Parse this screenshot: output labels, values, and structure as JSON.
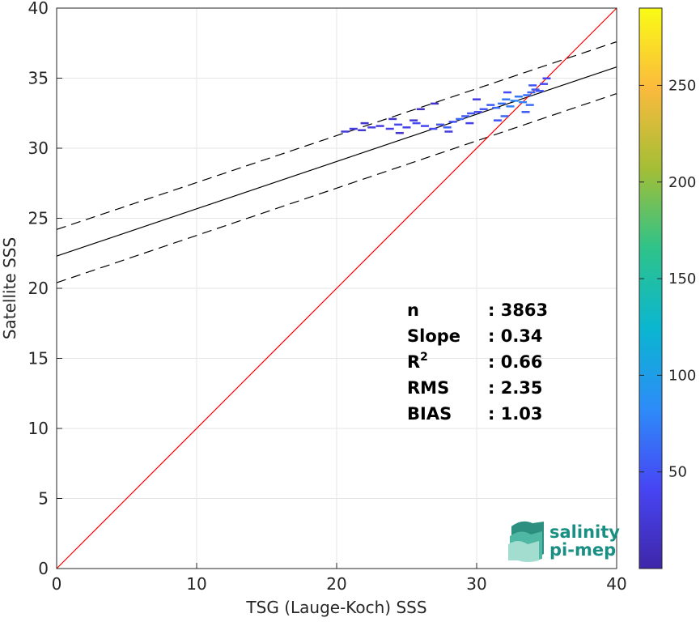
{
  "chart_data": {
    "type": "scatter",
    "xlabel": "TSG (Lauge-Koch) SSS",
    "ylabel": "Satellite SSS",
    "xlim": [
      0,
      40
    ],
    "ylim": [
      0,
      40
    ],
    "xticks": [
      "0",
      "10",
      "20",
      "30",
      "40"
    ],
    "yticks": [
      "0",
      "5",
      "10",
      "15",
      "20",
      "25",
      "30",
      "35",
      "40"
    ],
    "grid": true,
    "identity_line": {
      "from": [
        0,
        0
      ],
      "to": [
        40,
        40
      ],
      "color": "#ff0000"
    },
    "fit_line": {
      "from": [
        0,
        22.3
      ],
      "to": [
        40,
        35.8
      ],
      "color": "#000000"
    },
    "fit_band_upper": {
      "from": [
        0,
        24.2
      ],
      "to": [
        40,
        37.6
      ]
    },
    "fit_band_lower": {
      "from": [
        0,
        20.4
      ],
      "to": [
        40,
        33.9
      ]
    },
    "density_points": [
      [
        20.6,
        31.2,
        25
      ],
      [
        21.2,
        31.4,
        30
      ],
      [
        21.8,
        31.3,
        25
      ],
      [
        22.5,
        31.5,
        35
      ],
      [
        23.1,
        31.6,
        30
      ],
      [
        23.8,
        31.4,
        35
      ],
      [
        24.4,
        31.7,
        40
      ],
      [
        25.0,
        31.5,
        35
      ],
      [
        25.7,
        31.8,
        45
      ],
      [
        26.3,
        31.6,
        40
      ],
      [
        26.9,
        31.4,
        45
      ],
      [
        27.4,
        31.7,
        50
      ],
      [
        27.9,
        31.5,
        55
      ],
      [
        28.3,
        31.9,
        50
      ],
      [
        28.8,
        32.1,
        60
      ],
      [
        29.2,
        32.3,
        55
      ],
      [
        29.6,
        32.5,
        50
      ],
      [
        30.1,
        32.6,
        45
      ],
      [
        30.5,
        32.8,
        50
      ],
      [
        31.0,
        33.1,
        55
      ],
      [
        31.4,
        32.9,
        60
      ],
      [
        31.8,
        33.2,
        65
      ],
      [
        32.1,
        33.5,
        70
      ],
      [
        32.4,
        33.0,
        75
      ],
      [
        32.7,
        33.4,
        80
      ],
      [
        33.0,
        33.7,
        70
      ],
      [
        33.3,
        33.3,
        75
      ],
      [
        33.6,
        33.8,
        65
      ],
      [
        33.9,
        34.0,
        60
      ],
      [
        34.2,
        34.2,
        55
      ],
      [
        34.5,
        34.1,
        50
      ],
      [
        34.8,
        34.6,
        45
      ],
      [
        35.0,
        35.0,
        40
      ],
      [
        24.0,
        32.1,
        20
      ],
      [
        25.5,
        32.0,
        25
      ],
      [
        22.0,
        31.8,
        20
      ],
      [
        28.0,
        31.2,
        30
      ],
      [
        29.5,
        31.8,
        35
      ],
      [
        32.0,
        32.3,
        60
      ],
      [
        33.5,
        32.6,
        55
      ],
      [
        31.5,
        32.0,
        50
      ],
      [
        33.8,
        33.1,
        65
      ],
      [
        26.0,
        32.8,
        15
      ],
      [
        27.0,
        33.2,
        15
      ],
      [
        24.5,
        31.1,
        20
      ],
      [
        30.0,
        33.5,
        30
      ],
      [
        32.2,
        34.0,
        45
      ],
      [
        34.0,
        34.5,
        50
      ]
    ],
    "colorbar": {
      "range": [
        0,
        290
      ],
      "ticks": [
        "50",
        "100",
        "150",
        "200",
        "250"
      ],
      "colors": [
        "#3e26a8",
        "#4745f4",
        "#2d8cf8",
        "#0ab6d0",
        "#2ec38a",
        "#a4be35",
        "#fbba3d",
        "#f9fb15"
      ]
    },
    "stats": [
      {
        "label": "n",
        "sep": ":",
        "value": "3863"
      },
      {
        "label": "Slope",
        "sep": ":",
        "value": "0.34"
      },
      {
        "label": "R",
        "sup": "2",
        "sep": ":",
        "value": "0.66"
      },
      {
        "label": "RMS",
        "sep": ":",
        "value": "2.35"
      },
      {
        "label": "BIAS",
        "sep": ":",
        "value": "1.03"
      }
    ]
  },
  "logo": {
    "line1": "salinity",
    "line2": "pi-mep"
  }
}
